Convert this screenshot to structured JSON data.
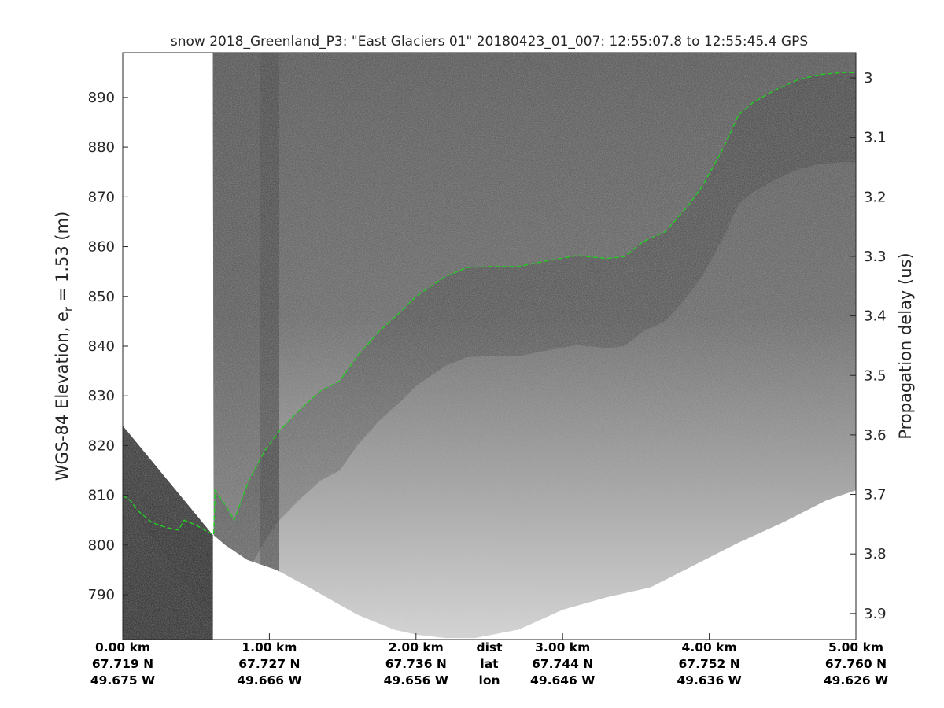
{
  "chart_data": {
    "type": "heatmap",
    "title": "snow 2018_Greenland_P3: \"East Glaciers 01\"  20180423_01_007: 12:55:07.8 to 12:55:45.4 GPS",
    "ylabel_left": {
      "main": "WGS-84 Elevation, e",
      "subscript": "r",
      "suffix": " = 1.53 (m)"
    },
    "ylabel_right": "Propagation delay (us)",
    "left_axis": {
      "ylim": [
        781,
        899
      ],
      "ticks": [
        790,
        800,
        810,
        820,
        830,
        840,
        850,
        860,
        870,
        880,
        890
      ]
    },
    "right_axis": {
      "ticks": [
        3.0,
        3.1,
        3.2,
        3.3,
        3.4,
        3.5,
        3.6,
        3.7,
        3.8,
        3.9
      ],
      "tick_labels": [
        "3",
        "3.1",
        "3.2",
        "3.3",
        "3.4",
        "3.5",
        "3.6",
        "3.7",
        "3.8",
        "3.9"
      ]
    },
    "x_axis": {
      "xlim_km": [
        0,
        5
      ],
      "rows": [
        {
          "name": "dist",
          "labels": [
            "0.00 km",
            "1.00 km",
            "2.00 km",
            "3.00 km",
            "4.00 km",
            "5.00 km"
          ]
        },
        {
          "name": "lat",
          "labels": [
            "67.719 N",
            "67.727 N",
            "67.736 N",
            "67.744 N",
            "67.752 N",
            "67.760 N"
          ]
        },
        {
          "name": "lon",
          "labels": [
            "49.675 W",
            "49.666 W",
            "49.656 W",
            "49.646 W",
            "49.636 W",
            "49.626 W"
          ]
        }
      ],
      "tick_km": [
        0,
        1,
        2,
        3,
        4,
        5
      ]
    },
    "surface_layer": {
      "color": "#22cc22",
      "style": "dashed",
      "distance_km": [
        0,
        0.05,
        0.1,
        0.2,
        0.3,
        0.38,
        0.42,
        0.5,
        0.62,
        0.63,
        0.7,
        0.76,
        0.86,
        0.97,
        1.07,
        1.2,
        1.35,
        1.48,
        1.6,
        1.75,
        1.9,
        2.0,
        2.1,
        2.2,
        2.35,
        2.5,
        2.7,
        2.9,
        3.1,
        3.3,
        3.42,
        3.55,
        3.7,
        3.85,
        3.95,
        4.1,
        4.2,
        4.3,
        4.45,
        4.6,
        4.75,
        4.9,
        5.0
      ],
      "elevation_m": [
        810,
        809,
        807,
        804.5,
        803.5,
        803,
        805,
        804,
        802,
        811,
        808,
        805,
        813,
        819,
        823,
        827,
        831,
        833,
        838,
        843,
        847,
        850,
        852,
        854,
        855.8,
        856,
        856,
        857.2,
        858.2,
        857.6,
        858,
        861,
        863,
        868,
        872,
        880,
        886.5,
        889,
        891.5,
        893.5,
        894.6,
        895,
        895
      ]
    },
    "bed_boundary": {
      "distance_km": [
        0,
        0.3,
        0.55,
        0.62,
        0.7,
        0.85,
        1.05,
        1.3,
        1.6,
        1.85,
        2.0,
        2.2,
        2.4,
        2.7,
        3.0,
        3.3,
        3.6,
        3.9,
        4.2,
        4.5,
        4.8,
        5.0
      ],
      "elevation_m": [
        824,
        813,
        804,
        802,
        800,
        797,
        795,
        791,
        786,
        783,
        782,
        781.3,
        781.3,
        783,
        787,
        789.5,
        791.5,
        796,
        800.5,
        804.5,
        809,
        811
      ]
    },
    "data_gap_km": [
      0,
      0.615
    ]
  }
}
